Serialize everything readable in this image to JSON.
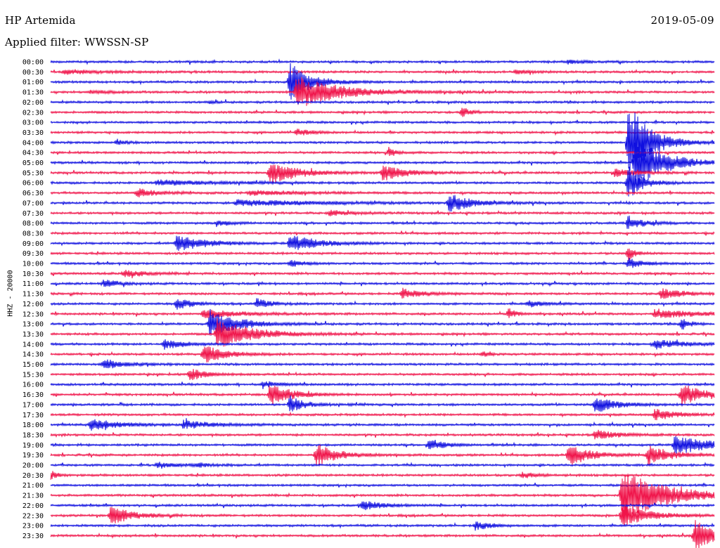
{
  "header": {
    "station": "HP Artemida",
    "date": "2019-05-09",
    "filter": "Applied filter: WWSSN-SP",
    "channel": "HHZ - 20000"
  },
  "colors": {
    "blue": "#1010e0",
    "red": "#f0144a",
    "background": "#ffffff"
  },
  "chart_data": {
    "type": "line",
    "title": "HP Artemida",
    "subtitle": "Applied filter: WWSSN-SP",
    "date": "2019-05-09",
    "ylabel": "HHZ - 20000",
    "xlabel": "",
    "row_labels": [
      "00:00",
      "00:30",
      "01:00",
      "01:30",
      "02:00",
      "02:30",
      "03:00",
      "03:30",
      "04:00",
      "04:30",
      "05:00",
      "05:30",
      "06:00",
      "06:30",
      "07:00",
      "07:30",
      "08:00",
      "08:30",
      "09:00",
      "09:30",
      "10:00",
      "10:30",
      "11:00",
      "11:30",
      "12:00",
      "12:30",
      "13:00",
      "13:30",
      "14:00",
      "14:30",
      "15:00",
      "15:30",
      "16:00",
      "16:30",
      "17:00",
      "17:30",
      "18:00",
      "18:30",
      "19:00",
      "19:30",
      "20:00",
      "20:30",
      "21:00",
      "21:30",
      "22:00",
      "22:30",
      "23:00",
      "23:30"
    ],
    "row_minutes": 30,
    "row_colors": [
      "blue",
      "red"
    ],
    "grid": false,
    "legend": "none",
    "events": [
      {
        "row": 0,
        "pos": 0.78,
        "amp": 3,
        "dur": 0.02
      },
      {
        "row": 1,
        "pos": 0.02,
        "amp": 3,
        "dur": 0.05
      },
      {
        "row": 1,
        "pos": 0.7,
        "amp": 3,
        "dur": 0.02
      },
      {
        "row": 2,
        "pos": 0.36,
        "amp": 28,
        "dur": 0.03
      },
      {
        "row": 3,
        "pos": 0.37,
        "amp": 24,
        "dur": 0.06
      },
      {
        "row": 3,
        "pos": 0.06,
        "amp": 2,
        "dur": 0.03
      },
      {
        "row": 4,
        "pos": 0.24,
        "amp": 2,
        "dur": 0.01
      },
      {
        "row": 5,
        "pos": 0.62,
        "amp": 8,
        "dur": 0.01
      },
      {
        "row": 7,
        "pos": 0.37,
        "amp": 5,
        "dur": 0.02
      },
      {
        "row": 8,
        "pos": 0.1,
        "amp": 4,
        "dur": 0.01
      },
      {
        "row": 8,
        "pos": 0.87,
        "amp": 60,
        "dur": 0.03
      },
      {
        "row": 9,
        "pos": 0.51,
        "amp": 8,
        "dur": 0.01
      },
      {
        "row": 10,
        "pos": 0.88,
        "amp": 40,
        "dur": 0.04
      },
      {
        "row": 11,
        "pos": 0.33,
        "amp": 16,
        "dur": 0.04
      },
      {
        "row": 11,
        "pos": 0.5,
        "amp": 12,
        "dur": 0.03
      },
      {
        "row": 11,
        "pos": 0.85,
        "amp": 6,
        "dur": 0.03
      },
      {
        "row": 12,
        "pos": 0.16,
        "amp": 4,
        "dur": 0.08
      },
      {
        "row": 12,
        "pos": 0.87,
        "amp": 24,
        "dur": 0.02
      },
      {
        "row": 13,
        "pos": 0.13,
        "amp": 6,
        "dur": 0.03
      },
      {
        "row": 13,
        "pos": 0.3,
        "amp": 3,
        "dur": 0.08
      },
      {
        "row": 14,
        "pos": 0.6,
        "amp": 14,
        "dur": 0.03
      },
      {
        "row": 14,
        "pos": 0.28,
        "amp": 4,
        "dur": 0.12
      },
      {
        "row": 15,
        "pos": 0.42,
        "amp": 4,
        "dur": 0.03
      },
      {
        "row": 16,
        "pos": 0.25,
        "amp": 4,
        "dur": 0.02
      },
      {
        "row": 16,
        "pos": 0.87,
        "amp": 10,
        "dur": 0.02
      },
      {
        "row": 18,
        "pos": 0.19,
        "amp": 12,
        "dur": 0.04
      },
      {
        "row": 18,
        "pos": 0.36,
        "amp": 12,
        "dur": 0.04
      },
      {
        "row": 19,
        "pos": 0.87,
        "amp": 10,
        "dur": 0.01
      },
      {
        "row": 20,
        "pos": 0.36,
        "amp": 5,
        "dur": 0.02
      },
      {
        "row": 20,
        "pos": 0.87,
        "amp": 8,
        "dur": 0.02
      },
      {
        "row": 21,
        "pos": 0.11,
        "amp": 5,
        "dur": 0.03
      },
      {
        "row": 22,
        "pos": 0.08,
        "amp": 6,
        "dur": 0.02
      },
      {
        "row": 23,
        "pos": 0.53,
        "amp": 7,
        "dur": 0.03
      },
      {
        "row": 23,
        "pos": 0.92,
        "amp": 8,
        "dur": 0.03
      },
      {
        "row": 24,
        "pos": 0.19,
        "amp": 9,
        "dur": 0.02
      },
      {
        "row": 24,
        "pos": 0.31,
        "amp": 7,
        "dur": 0.02
      },
      {
        "row": 24,
        "pos": 0.72,
        "amp": 5,
        "dur": 0.02
      },
      {
        "row": 25,
        "pos": 0.23,
        "amp": 6,
        "dur": 0.05
      },
      {
        "row": 25,
        "pos": 0.69,
        "amp": 8,
        "dur": 0.01
      },
      {
        "row": 25,
        "pos": 0.91,
        "amp": 6,
        "dur": 0.06
      },
      {
        "row": 26,
        "pos": 0.24,
        "amp": 20,
        "dur": 0.04
      },
      {
        "row": 26,
        "pos": 0.95,
        "amp": 10,
        "dur": 0.01
      },
      {
        "row": 27,
        "pos": 0.25,
        "amp": 22,
        "dur": 0.05
      },
      {
        "row": 28,
        "pos": 0.17,
        "amp": 7,
        "dur": 0.03
      },
      {
        "row": 28,
        "pos": 0.91,
        "amp": 7,
        "dur": 0.04
      },
      {
        "row": 29,
        "pos": 0.23,
        "amp": 14,
        "dur": 0.03
      },
      {
        "row": 29,
        "pos": 0.65,
        "amp": 4,
        "dur": 0.01
      },
      {
        "row": 30,
        "pos": 0.08,
        "amp": 7,
        "dur": 0.03
      },
      {
        "row": 31,
        "pos": 0.21,
        "amp": 10,
        "dur": 0.02
      },
      {
        "row": 32,
        "pos": 0.32,
        "amp": 5,
        "dur": 0.02
      },
      {
        "row": 33,
        "pos": 0.33,
        "amp": 16,
        "dur": 0.03
      },
      {
        "row": 33,
        "pos": 0.95,
        "amp": 16,
        "dur": 0.03
      },
      {
        "row": 34,
        "pos": 0.36,
        "amp": 13,
        "dur": 0.02
      },
      {
        "row": 34,
        "pos": 0.82,
        "amp": 13,
        "dur": 0.03
      },
      {
        "row": 35,
        "pos": 0.91,
        "amp": 8,
        "dur": 0.03
      },
      {
        "row": 36,
        "pos": 0.06,
        "amp": 8,
        "dur": 0.04
      },
      {
        "row": 36,
        "pos": 0.2,
        "amp": 6,
        "dur": 0.04
      },
      {
        "row": 37,
        "pos": 0.82,
        "amp": 7,
        "dur": 0.03
      },
      {
        "row": 38,
        "pos": 0.57,
        "amp": 9,
        "dur": 0.02
      },
      {
        "row": 38,
        "pos": 0.94,
        "amp": 14,
        "dur": 0.05
      },
      {
        "row": 39,
        "pos": 0.4,
        "amp": 16,
        "dur": 0.03
      },
      {
        "row": 39,
        "pos": 0.78,
        "amp": 16,
        "dur": 0.03
      },
      {
        "row": 39,
        "pos": 0.9,
        "amp": 14,
        "dur": 0.03
      },
      {
        "row": 40,
        "pos": 0.16,
        "amp": 4,
        "dur": 0.03
      },
      {
        "row": 40,
        "pos": 0.22,
        "amp": 3,
        "dur": 0.02
      },
      {
        "row": 41,
        "pos": 0.0,
        "amp": 6,
        "dur": 0.01
      },
      {
        "row": 41,
        "pos": 0.71,
        "amp": 4,
        "dur": 0.02
      },
      {
        "row": 43,
        "pos": 0.86,
        "amp": 40,
        "dur": 0.06
      },
      {
        "row": 44,
        "pos": 0.47,
        "amp": 7,
        "dur": 0.03
      },
      {
        "row": 45,
        "pos": 0.09,
        "amp": 14,
        "dur": 0.03
      },
      {
        "row": 45,
        "pos": 0.86,
        "amp": 16,
        "dur": 0.04
      },
      {
        "row": 46,
        "pos": 0.64,
        "amp": 7,
        "dur": 0.02
      },
      {
        "row": 47,
        "pos": 0.97,
        "amp": 22,
        "dur": 0.03
      }
    ]
  }
}
